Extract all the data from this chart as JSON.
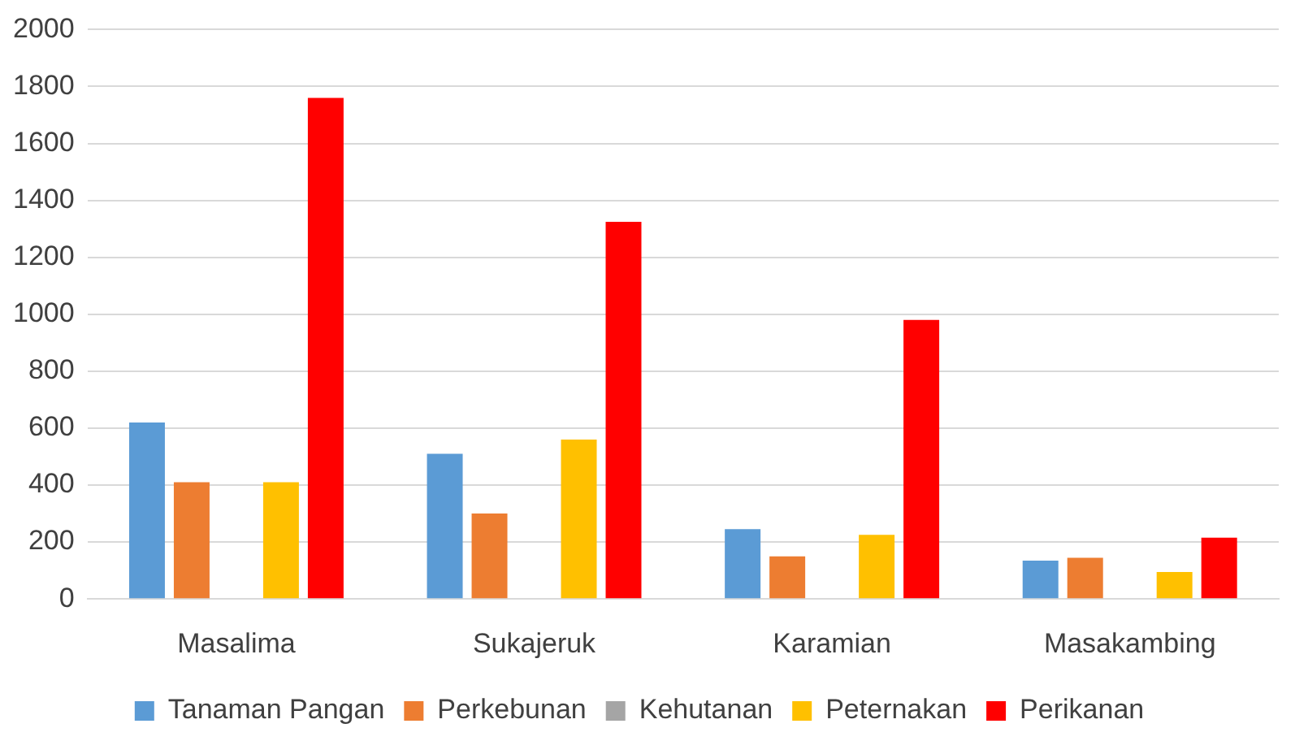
{
  "chart_data": {
    "type": "bar",
    "categories": [
      "Masalima",
      "Sukajeruk",
      "Karamian",
      "Masakambing"
    ],
    "series": [
      {
        "name": "Tanaman Pangan",
        "color": "#5b9bd5",
        "values": [
          620,
          510,
          245,
          135
        ]
      },
      {
        "name": "Perkebunan",
        "color": "#ed7d31",
        "values": [
          410,
          300,
          150,
          145
        ]
      },
      {
        "name": "Kehutanan",
        "color": "#a5a5a5",
        "values": [
          0,
          0,
          0,
          0
        ]
      },
      {
        "name": "Peternakan",
        "color": "#ffc000",
        "values": [
          410,
          560,
          225,
          95
        ]
      },
      {
        "name": "Perikanan",
        "color": "#ff0000",
        "values": [
          1760,
          1325,
          980,
          215
        ]
      }
    ],
    "ylim": [
      0,
      2000
    ],
    "yticks": [
      0,
      200,
      400,
      600,
      800,
      1000,
      1200,
      1400,
      1600,
      1800,
      2000
    ],
    "grid": "y",
    "legend": "bottom"
  }
}
